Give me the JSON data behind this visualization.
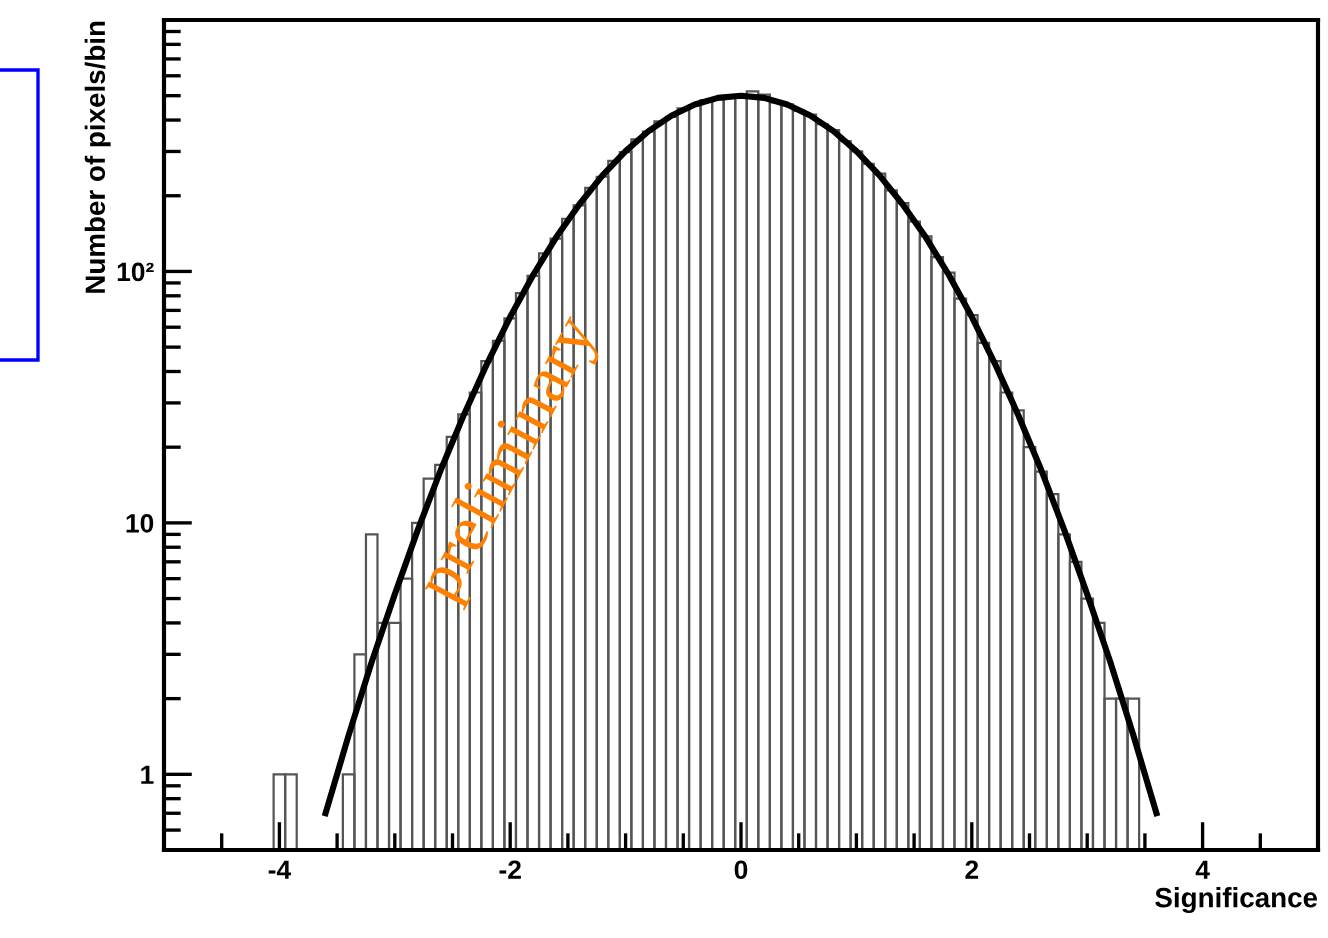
{
  "chart_data": {
    "type": "histogram",
    "xlabel": "Significance",
    "ylabel": "Number of pixels/bin",
    "bins": [
      -4.05,
      -3.95,
      -3.85,
      -3.75,
      -3.65,
      -3.55,
      -3.45,
      -3.35,
      -3.25,
      -3.15,
      -3.05,
      -2.95,
      -2.85,
      -2.75,
      -2.65,
      -2.55,
      -2.45,
      -2.35,
      -2.25,
      -2.15,
      -2.05,
      -1.95,
      -1.85,
      -1.75,
      -1.65,
      -1.55,
      -1.45,
      -1.35,
      -1.25,
      -1.15,
      -1.05,
      -0.95,
      -0.85,
      -0.75,
      -0.65,
      -0.55,
      -0.45,
      -0.35,
      -0.25,
      -0.15,
      -0.05,
      0.05,
      0.15,
      0.25,
      0.35,
      0.45,
      0.55,
      0.65,
      0.75,
      0.85,
      0.95,
      1.05,
      1.15,
      1.25,
      1.35,
      1.45,
      1.55,
      1.65,
      1.75,
      1.85,
      1.95,
      2.05,
      2.15,
      2.25,
      2.35,
      2.45,
      2.55,
      2.65,
      2.75,
      2.85,
      2.95,
      3.05,
      3.15,
      3.25,
      3.35,
      3.45
    ],
    "values": [
      1,
      1,
      null,
      null,
      null,
      null,
      1,
      3,
      9,
      4,
      4,
      6,
      10,
      15,
      17,
      22,
      27,
      33,
      44,
      53,
      65,
      82,
      96,
      118,
      135,
      162,
      183,
      215,
      238,
      275,
      298,
      335,
      360,
      395,
      412,
      445,
      458,
      480,
      485,
      500,
      495,
      520,
      505,
      470,
      462,
      435,
      420,
      385,
      365,
      330,
      300,
      268,
      245,
      210,
      187,
      158,
      138,
      114,
      99,
      78,
      67,
      52,
      44,
      33,
      28,
      20,
      16,
      13,
      9,
      7,
      5,
      4,
      2,
      2,
      2
    ],
    "color": "#555555",
    "series": [
      {
        "type": "line",
        "color": "#000000",
        "x": [
          -3.6,
          -3.4,
          -3.2,
          -3.0,
          -2.8,
          -2.6,
          -2.4,
          -2.2,
          -2.0,
          -1.8,
          -1.6,
          -1.4,
          -1.2,
          -1.0,
          -0.8,
          -0.6,
          -0.4,
          -0.2,
          0.0,
          0.2,
          0.4,
          0.6,
          0.8,
          1.0,
          1.2,
          1.4,
          1.6,
          1.8,
          2.0,
          2.2,
          2.4,
          2.6,
          2.8,
          3.0,
          3.2,
          3.4,
          3.6
        ],
        "values": [
          0.7,
          1.43,
          2.8,
          5.2,
          9.4,
          16.3,
          27,
          43,
          66,
          97,
          137,
          185,
          241,
          301,
          362,
          417,
          461,
          490,
          500,
          490,
          461,
          417,
          362,
          301,
          241,
          185,
          137,
          97,
          66,
          43,
          27,
          16.3,
          9.4,
          5.2,
          2.8,
          1.43,
          0.7
        ]
      }
    ],
    "xlim": [
      -5,
      5
    ],
    "xticks": [
      -4,
      -2,
      0,
      2,
      4
    ],
    "ylim": [
      0.5,
      1000
    ],
    "yticks": [
      1,
      10,
      {
        "value": 100,
        "label": "10²"
      }
    ],
    "log": "y",
    "grid": false,
    "legend": false,
    "annotations": [
      "preliminary"
    ]
  }
}
